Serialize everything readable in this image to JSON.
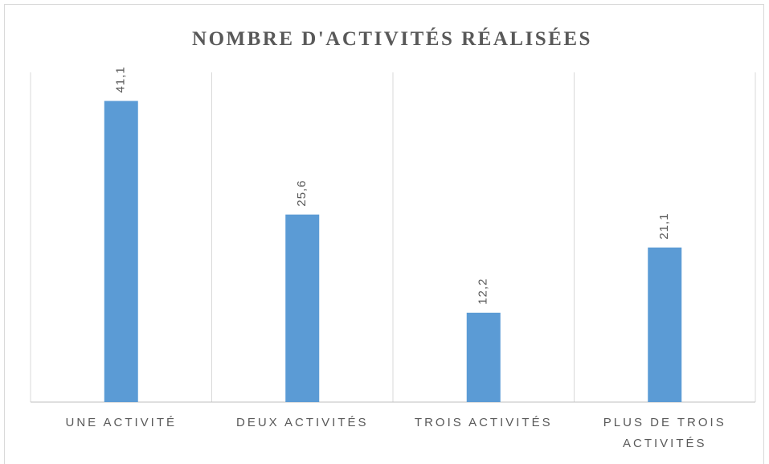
{
  "chart_data": {
    "type": "bar",
    "title": "NOMBRE D'ACTIVITÉS RÉALISÉES",
    "categories": [
      "UNE ACTIVITÉ",
      "DEUX ACTIVITÉS",
      "TROIS ACTIVITÉS",
      "PLUS DE TROIS ACTIVITÉS"
    ],
    "values": [
      41.1,
      25.6,
      12.2,
      21.1
    ],
    "value_labels": [
      "41,1",
      "25,6",
      "12,2",
      "21,1"
    ],
    "color": "#5b9bd5",
    "ylim": [
      0,
      45
    ]
  }
}
